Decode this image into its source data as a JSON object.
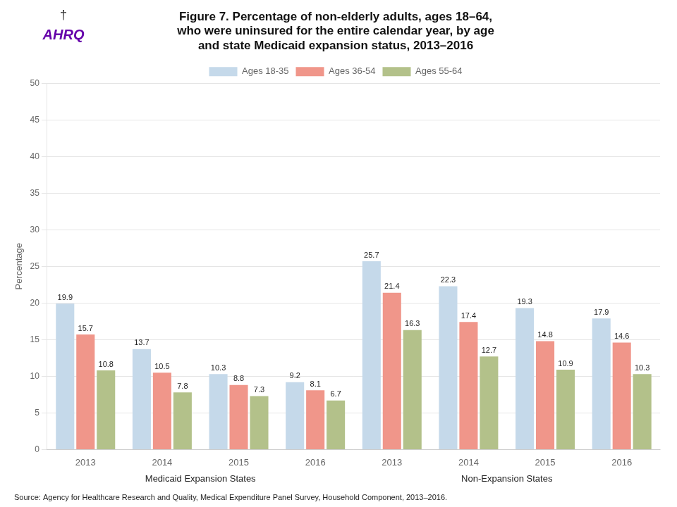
{
  "chart_data": {
    "type": "bar",
    "title": "Figure 7. Percentage of non-elderly adults, ages 18–64,\nwho were uninsured for the entire calendar year, by age\nand state Medicaid expansion status, 2013–2016",
    "ylabel": "Percentage",
    "categories": [
      "2013",
      "2014",
      "2015",
      "2016",
      "2013",
      "2014",
      "2015",
      "2016"
    ],
    "x_groups": [
      {
        "label": "Medicaid Expansion States",
        "categories": [
          "2013",
          "2014",
          "2015",
          "2016"
        ]
      },
      {
        "label": "Non-Expansion States",
        "categories": [
          "2013",
          "2014",
          "2015",
          "2016"
        ]
      }
    ],
    "series": [
      {
        "name": "Ages 18-35",
        "color": "#c5d9ea",
        "values": [
          19.9,
          13.7,
          10.3,
          9.2,
          25.7,
          22.3,
          19.3,
          17.9
        ]
      },
      {
        "name": "Ages 36-54",
        "color": "#f0968a",
        "values": [
          15.7,
          10.5,
          8.8,
          8.1,
          21.4,
          17.4,
          14.8,
          14.6
        ]
      },
      {
        "name": "Ages 55-64",
        "color": "#b3c18a",
        "values": [
          10.8,
          7.8,
          7.3,
          6.7,
          16.3,
          12.7,
          10.9,
          10.3
        ]
      }
    ],
    "ylim": [
      0,
      50
    ],
    "yticks": [
      0,
      5,
      10,
      15,
      20,
      25,
      30,
      35,
      40,
      45,
      50
    ],
    "grid": true,
    "legend": "top",
    "data_labels": true,
    "annotations": [
      "†",
      "AHRQ"
    ],
    "source": "Source: Agency for Healthcare Research and Quality, Medical Expenditure Panel Survey, Household Component, 2013–2016."
  }
}
